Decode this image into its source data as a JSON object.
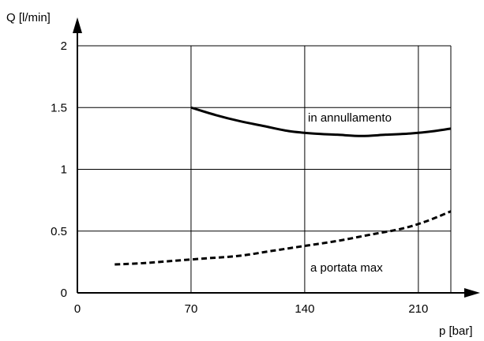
{
  "chart_data": {
    "type": "line",
    "title": "",
    "xlabel": "p [bar]",
    "ylabel": "Q [l/min]",
    "xlim": [
      0,
      230
    ],
    "ylim": [
      0,
      2
    ],
    "x_ticks": [
      0,
      70,
      140,
      210
    ],
    "x_tick_labels": [
      "0",
      "70",
      "140",
      "210"
    ],
    "y_ticks": [
      0,
      0.5,
      1,
      1.5,
      2
    ],
    "y_tick_labels": [
      "0",
      "0.5",
      "1",
      "1.5",
      "2"
    ],
    "grid": true,
    "series": [
      {
        "name": "in annullamento",
        "style": "solid",
        "x": [
          70,
          85,
          100,
          115,
          130,
          145,
          160,
          175,
          190,
          205,
          220,
          230
        ],
        "y": [
          1.5,
          1.44,
          1.39,
          1.35,
          1.31,
          1.29,
          1.28,
          1.27,
          1.28,
          1.29,
          1.31,
          1.33
        ]
      },
      {
        "name": "a portata max",
        "style": "dashed",
        "x": [
          23,
          40,
          60,
          80,
          100,
          120,
          140,
          160,
          180,
          200,
          215,
          230
        ],
        "y": [
          0.23,
          0.24,
          0.26,
          0.28,
          0.3,
          0.34,
          0.38,
          0.42,
          0.47,
          0.52,
          0.58,
          0.66
        ]
      }
    ]
  }
}
